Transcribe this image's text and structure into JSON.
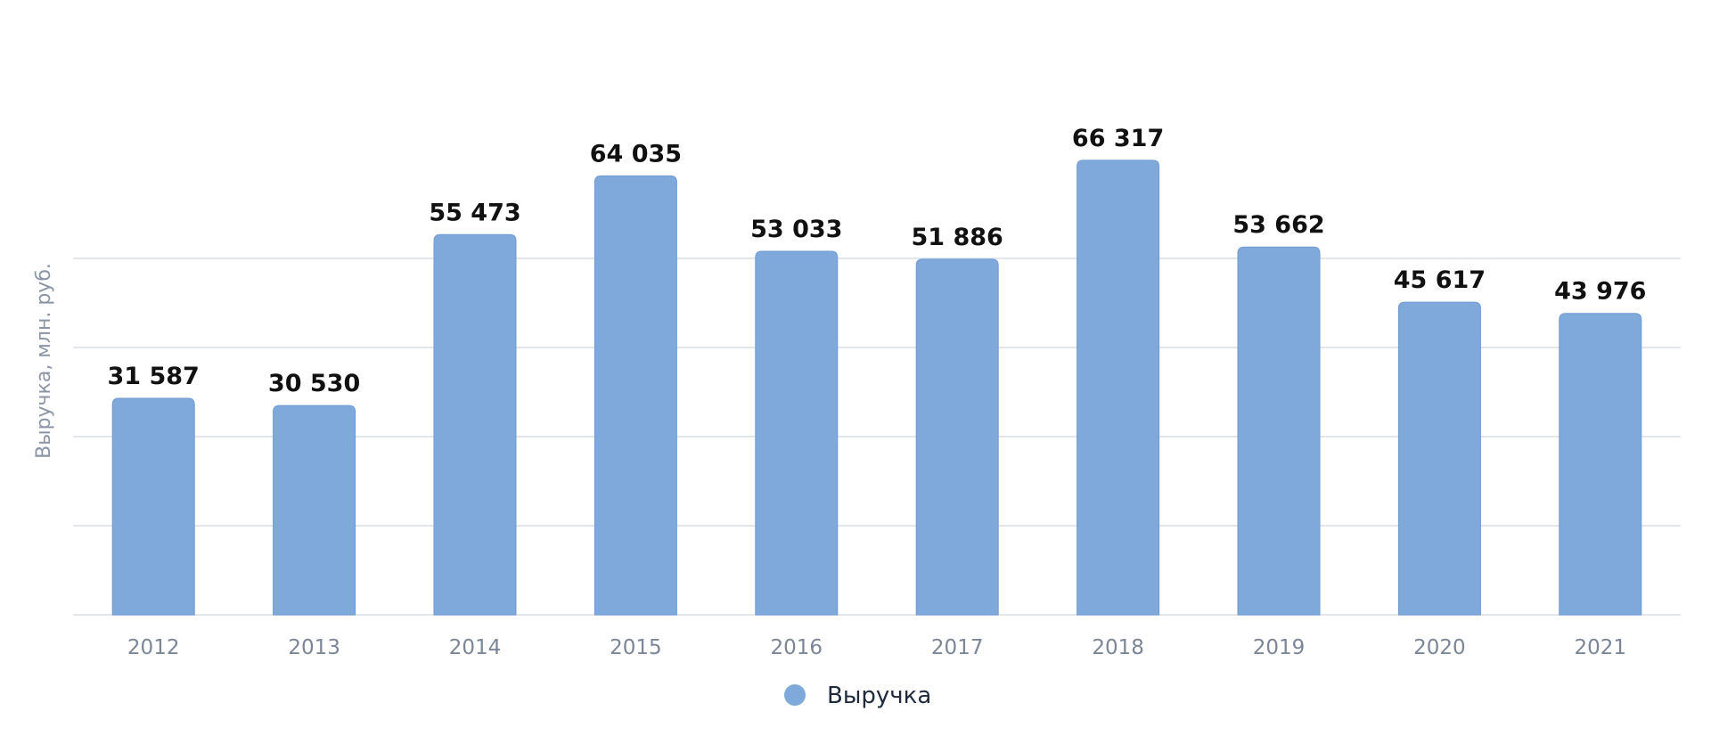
{
  "chart_data": {
    "type": "bar",
    "title": "",
    "xlabel": "",
    "ylabel": "Выручка, млн. руб.",
    "categories": [
      "2012",
      "2013",
      "2014",
      "2015",
      "2016",
      "2017",
      "2018",
      "2019",
      "2020",
      "2021"
    ],
    "series": [
      {
        "name": "Выручка",
        "color": "#7fa9db",
        "values": [
          31587,
          30530,
          55473,
          64035,
          53033,
          51886,
          66317,
          53662,
          45617,
          43976
        ],
        "labels": [
          "31 587",
          "30 530",
          "55 473",
          "64 035",
          "53 033",
          "51 886",
          "66 317",
          "53 662",
          "45 617",
          "43 976"
        ]
      }
    ],
    "grid": true,
    "legend": "bottom-center"
  }
}
